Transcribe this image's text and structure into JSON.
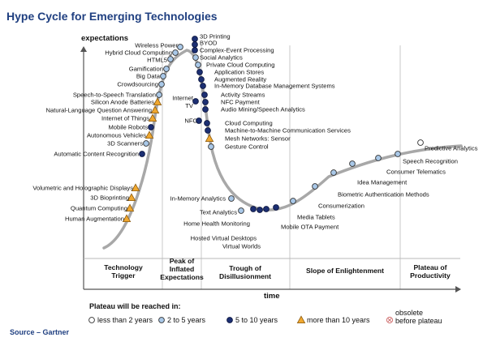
{
  "title": "Hype Cycle for Emerging Technologies",
  "y_axis_label": "expectations",
  "x_axis_label": "time",
  "source": "Source – Gartner",
  "phases": [
    "Technology Trigger",
    "Peak of Inflated Expectations",
    "Trough of Disillusionment",
    "Slope of Enlightenment",
    "Plateau of Productivity"
  ],
  "phase_lines": [
    [
      "Technology",
      "Trigger"
    ],
    [
      "Peak of",
      "Inflated",
      "Expectations"
    ],
    [
      "Trough of",
      "Disillusionment"
    ],
    [
      "Slope of Enlightenment"
    ],
    [
      "Plateau of",
      "Productivity"
    ]
  ],
  "legend": {
    "title": "Plateau will be reached in:",
    "items": [
      {
        "key": "lt2",
        "label": "less than 2 years",
        "marker": "circle",
        "fill": "#ffffff",
        "stroke": "#333333"
      },
      {
        "key": "2to5",
        "label": "2 to 5 years",
        "marker": "circle",
        "fill": "#a9c8e8",
        "stroke": "#333333"
      },
      {
        "key": "5to10",
        "label": "5 to 10 years",
        "marker": "circle",
        "fill": "#1c2f73",
        "stroke": "#0c1640"
      },
      {
        "key": "gt10",
        "label": "more than 10 years",
        "marker": "triangle",
        "fill": "#f0a830",
        "stroke": "#8a5a10"
      },
      {
        "key": "obsolete",
        "label": "obsolete before plateau",
        "lines": [
          "obsolete",
          "before plateau"
        ],
        "marker": "x-circle",
        "fill": "#ffffff",
        "stroke": "#d07070"
      }
    ]
  },
  "technologies": [
    {
      "name": "3D Printing",
      "category": "5to10"
    },
    {
      "name": "BYOD",
      "category": "5to10"
    },
    {
      "name": "Complex-Event Processing",
      "category": "5to10"
    },
    {
      "name": "Social Analytics",
      "category": "2to5"
    },
    {
      "name": "Private Cloud Computing",
      "category": "2to5"
    },
    {
      "name": "Application Stores",
      "category": "5to10"
    },
    {
      "name": "Augmented Reality",
      "category": "5to10"
    },
    {
      "name": "In-Memory Database Management Systems",
      "category": "5to10"
    },
    {
      "name": "Activity Streams",
      "category": "5to10"
    },
    {
      "name": "NFC Payment",
      "category": "5to10"
    },
    {
      "name": "Audio Mining/Speech Analytics",
      "category": "5to10"
    },
    {
      "name": "Cloud Computing",
      "category": "5to10"
    },
    {
      "name": "Machine-to-Machine Communication Services",
      "category": "5to10"
    },
    {
      "name": "Mesh Networks: Sensor",
      "category": "gt10"
    },
    {
      "name": "Gesture Control",
      "category": "2to5"
    },
    {
      "name": "Wireless Power",
      "category": "2to5"
    },
    {
      "name": "Hybrid Cloud Computing",
      "category": "2to5"
    },
    {
      "name": "HTML5",
      "category": "2to5"
    },
    {
      "name": "Gamification",
      "category": "2to5"
    },
    {
      "name": "Big Data",
      "category": "2to5"
    },
    {
      "name": "Crowdsourcing",
      "category": "2to5"
    },
    {
      "name": "Speech-to-Speech Translation",
      "category": "2to5"
    },
    {
      "name": "Silicon Anode Batteries",
      "category": "gt10"
    },
    {
      "name": "Natural-Language Question Answering",
      "category": "gt10"
    },
    {
      "name": "Internet of Things",
      "category": "gt10"
    },
    {
      "name": "Mobile Robots",
      "category": "5to10"
    },
    {
      "name": "Autonomous Vehicles",
      "category": "gt10"
    },
    {
      "name": "3D Scanners",
      "category": "2to5"
    },
    {
      "name": "Automatic Content Recognition",
      "category": "5to10"
    },
    {
      "name": "Internet TV",
      "category": "5to10"
    },
    {
      "name": "NFC",
      "category": "5to10"
    },
    {
      "name": "Volumetric and Holographic Displays",
      "category": "gt10"
    },
    {
      "name": "3D Bioprinting",
      "category": "gt10"
    },
    {
      "name": "Quantum Computing",
      "category": "gt10"
    },
    {
      "name": "Human Augmentation",
      "category": "gt10"
    },
    {
      "name": "In-Memory Analytics",
      "category": "2to5"
    },
    {
      "name": "Text Analytics",
      "category": "2to5"
    },
    {
      "name": "Home Health Monitoring",
      "category": "5to10"
    },
    {
      "name": "Hosted Virtual Desktops",
      "category": "5to10"
    },
    {
      "name": "Virtual Worlds",
      "category": "5to10"
    },
    {
      "name": "Mobile OTA Payment",
      "category": "5to10"
    },
    {
      "name": "Media Tablets",
      "category": "2to5"
    },
    {
      "name": "Consumerization",
      "category": "2to5"
    },
    {
      "name": "Biometric Authentication Methods",
      "category": "2to5"
    },
    {
      "name": "Idea Management",
      "category": "2to5"
    },
    {
      "name": "Consumer Telematics",
      "category": "2to5"
    },
    {
      "name": "Speech Recognition",
      "category": "2to5"
    },
    {
      "name": "Predictive Analytics",
      "category": "lt2"
    }
  ]
}
